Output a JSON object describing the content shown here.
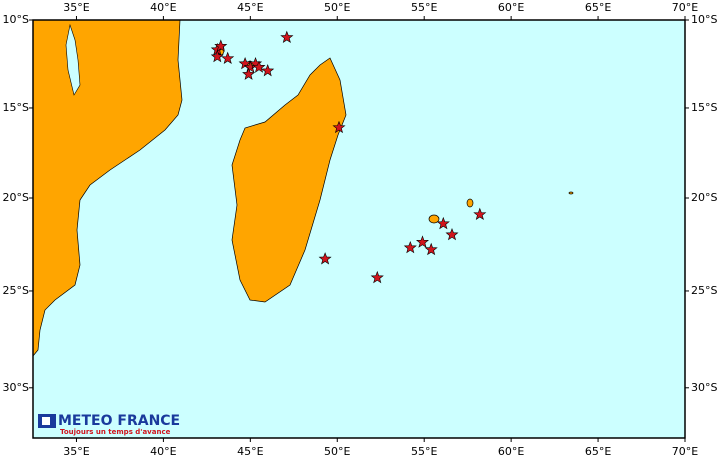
{
  "map": {
    "xlim": [
      32.5,
      70
    ],
    "ylim": [
      -32.5,
      -10
    ],
    "xticks": [
      {
        "value": 35,
        "label": "35°E"
      },
      {
        "value": 40,
        "label": "40°E"
      },
      {
        "value": 45,
        "label": "45°E"
      },
      {
        "value": 50,
        "label": "50°E"
      },
      {
        "value": 55,
        "label": "55°E"
      },
      {
        "value": 60,
        "label": "60°E"
      },
      {
        "value": 65,
        "label": "65°E"
      },
      {
        "value": 70,
        "label": "70°E"
      }
    ],
    "yticks": [
      {
        "value": -10,
        "label": "10°S"
      },
      {
        "value": -15,
        "label": "15°S"
      },
      {
        "value": -20,
        "label": "20°S"
      },
      {
        "value": -25,
        "label": "25°S"
      },
      {
        "value": -30,
        "label": "30°S"
      }
    ],
    "points": {
      "lon": [
        47.1,
        43.1,
        43.3,
        43.1,
        43.7,
        44.7,
        45.0,
        45.3,
        45.5,
        46.0,
        44.9,
        50.1,
        49.3,
        52.3,
        54.2,
        54.9,
        55.4,
        56.1,
        56.6,
        58.2
      ],
      "lat": [
        -11.0,
        -11.7,
        -11.5,
        -12.1,
        -12.2,
        -12.5,
        -12.7,
        -12.5,
        -12.7,
        -12.9,
        -13.1,
        -16.1,
        -23.3,
        -24.3,
        -22.7,
        -22.4,
        -22.8,
        -21.4,
        -22.0,
        -20.9
      ]
    },
    "point_color": "#d0141c",
    "land_color": "#ffa500",
    "sea_color": "#ccffff"
  },
  "logo": {
    "name": "METEO FRANCE",
    "tagline": "Toujours un temps d'avance"
  }
}
